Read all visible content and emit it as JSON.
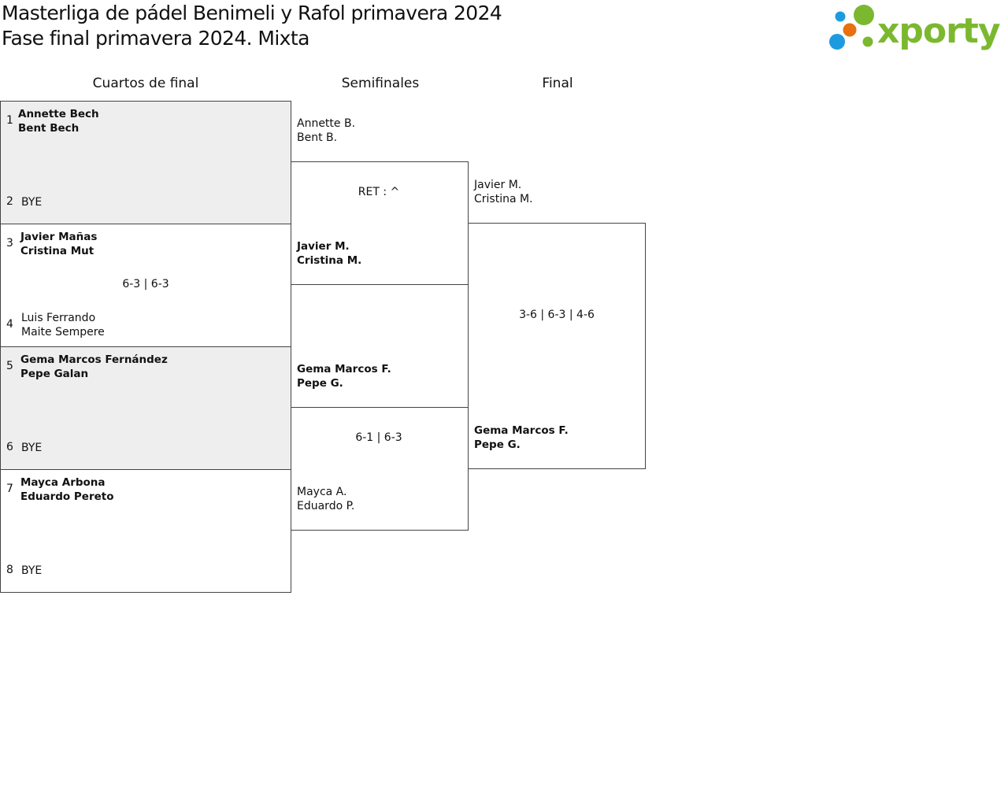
{
  "title": {
    "line1": "Masterliga de pádel Benimeli y Rafol primavera 2024",
    "line2": "Fase final primavera 2024. Mixta"
  },
  "logo": {
    "text": "xporty",
    "colors": {
      "green": "#7cb82f",
      "blue": "#1e9be0",
      "orange": "#e8700e"
    }
  },
  "rounds": [
    "Cuartos de final",
    "Semifinales",
    "Final"
  ],
  "quarterfinals": [
    {
      "seed_a": "1",
      "a": [
        "Annette Bech",
        "Bent Bech"
      ],
      "seed_b": "2",
      "b": [
        "BYE"
      ],
      "score": ""
    },
    {
      "seed_a": "3",
      "a": [
        "Javier Mañas",
        "Cristina Mut"
      ],
      "seed_b": "4",
      "b": [
        "Luis Ferrando",
        "Maite Sempere"
      ],
      "score": "6-3 | 6-3"
    },
    {
      "seed_a": "5",
      "a": [
        "Gema Marcos Fernández",
        "Pepe Galan"
      ],
      "seed_b": "6",
      "b": [
        "BYE"
      ],
      "score": ""
    },
    {
      "seed_a": "7",
      "a": [
        "Mayca Arbona",
        "Eduardo Pereto"
      ],
      "seed_b": "8",
      "b": [
        "BYE"
      ],
      "score": ""
    }
  ],
  "semifinals": [
    {
      "a": [
        "Annette B.",
        "Bent B."
      ],
      "b": [
        "Javier M.",
        "Cristina M."
      ],
      "score": "RET : ^"
    },
    {
      "a": [
        "Gema Marcos F.",
        "Pepe G."
      ],
      "b": [
        "Mayca A.",
        "Eduardo P."
      ],
      "score": "6-1 | 6-3"
    }
  ],
  "final": {
    "a": [
      "Javier M.",
      "Cristina M."
    ],
    "b": [
      "Gema Marcos F.",
      "Pepe G."
    ],
    "score": "3-6 | 6-3 | 4-6"
  }
}
